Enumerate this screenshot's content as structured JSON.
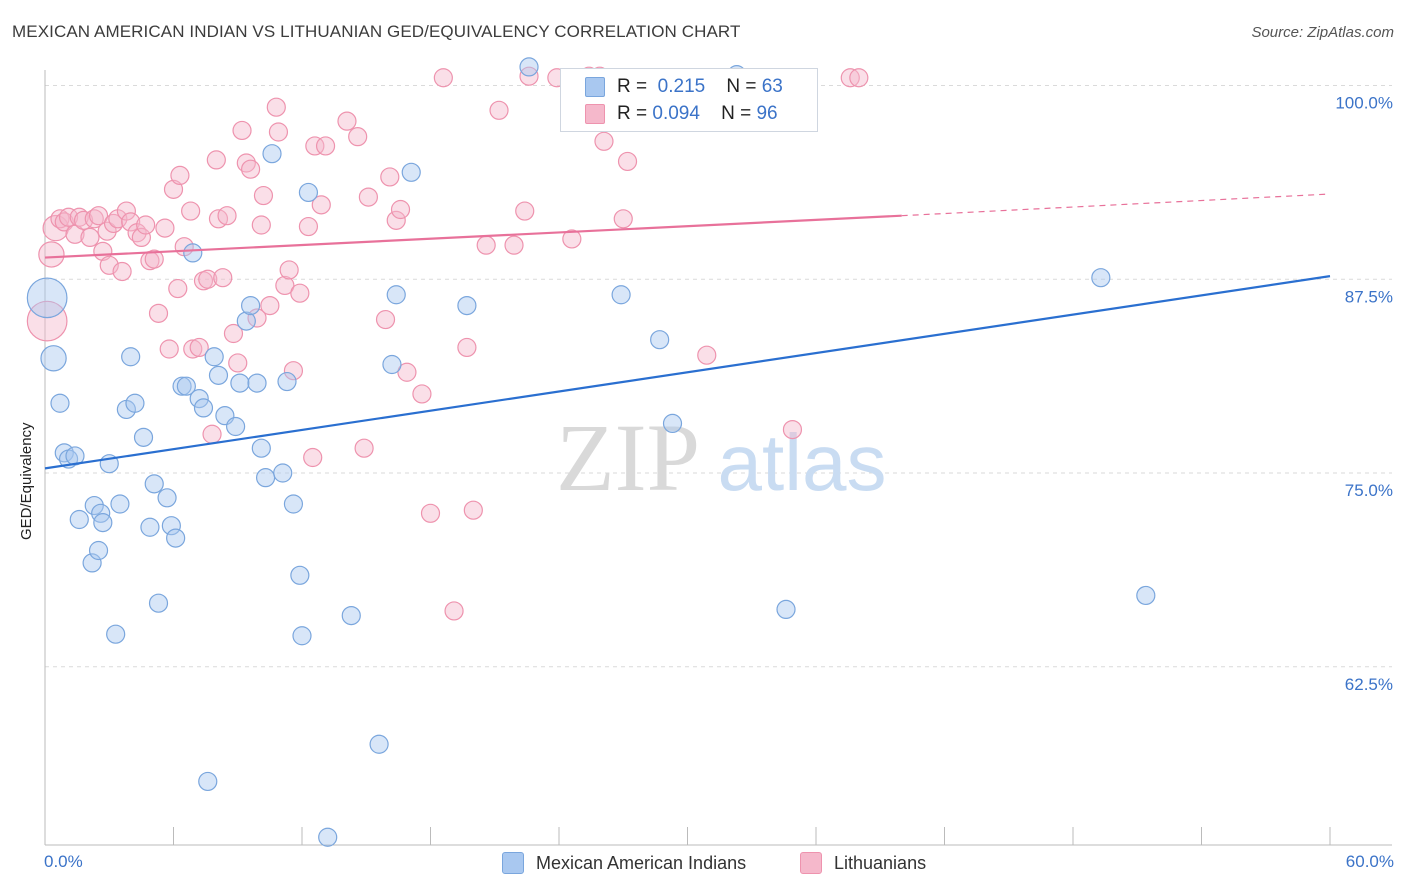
{
  "header": {
    "title": "MEXICAN AMERICAN INDIAN VS LITHUANIAN GED/EQUIVALENCY CORRELATION CHART",
    "source": "Source: ZipAtlas.com"
  },
  "watermark": {
    "zip": "ZIP",
    "atlas": "atlas"
  },
  "legend": {
    "r_label": "R =",
    "n_label": "N =",
    "series": [
      {
        "name": "Mexican American Indians",
        "r": "0.215",
        "n": "63",
        "color": "#a9c8f0"
      },
      {
        "name": "Lithuanians",
        "r": "0.094",
        "n": "96",
        "color": "#f5b8cb"
      }
    ]
  },
  "colors": {
    "blue_fill": "#a9c8f0",
    "blue_stroke": "#7aa6dd",
    "blue_line": "#2a6fd0",
    "pink_fill": "#f5b8cb",
    "pink_stroke": "#ee93ae",
    "pink_line": "#e8719a",
    "tick_text": "#3b73c8",
    "grid": "#dadada"
  },
  "chart_data": {
    "type": "scatter",
    "title": "MEXICAN AMERICAN INDIAN VS LITHUANIAN GED/EQUIVALENCY CORRELATION CHART",
    "xlabel": "",
    "ylabel": "GED/Equivalency",
    "xlim": [
      0,
      60
    ],
    "ylim": [
      51,
      101
    ],
    "x_tick_labels": [
      "0.0%",
      "60.0%"
    ],
    "y_ticks": [
      {
        "value": 100,
        "label": "100.0%"
      },
      {
        "value": 87.5,
        "label": "87.5%"
      },
      {
        "value": 75,
        "label": "75.0%"
      },
      {
        "value": 62.5,
        "label": "62.5%"
      }
    ],
    "series": [
      {
        "name": "Mexican American Indians",
        "color": "blue",
        "trend": {
          "x": [
            0,
            60
          ],
          "y": [
            75.3,
            87.7
          ]
        },
        "points": [
          {
            "x": 0.1,
            "y": 86.3,
            "s": 2.2
          },
          {
            "x": 0.4,
            "y": 82.4,
            "s": 1.4
          },
          {
            "x": 0.7,
            "y": 79.5
          },
          {
            "x": 0.9,
            "y": 76.3
          },
          {
            "x": 1.1,
            "y": 75.9
          },
          {
            "x": 1.4,
            "y": 76.1
          },
          {
            "x": 1.6,
            "y": 72.0
          },
          {
            "x": 2.2,
            "y": 69.2
          },
          {
            "x": 2.3,
            "y": 72.9
          },
          {
            "x": 2.6,
            "y": 72.4
          },
          {
            "x": 2.5,
            "y": 70.0
          },
          {
            "x": 2.7,
            "y": 71.8
          },
          {
            "x": 3.0,
            "y": 75.6
          },
          {
            "x": 3.3,
            "y": 64.6
          },
          {
            "x": 3.5,
            "y": 73.0
          },
          {
            "x": 3.8,
            "y": 79.1
          },
          {
            "x": 4.0,
            "y": 82.5
          },
          {
            "x": 4.2,
            "y": 79.5
          },
          {
            "x": 4.6,
            "y": 77.3
          },
          {
            "x": 4.9,
            "y": 71.5
          },
          {
            "x": 5.1,
            "y": 74.3
          },
          {
            "x": 5.3,
            "y": 66.6
          },
          {
            "x": 5.7,
            "y": 73.4
          },
          {
            "x": 5.9,
            "y": 71.6
          },
          {
            "x": 6.1,
            "y": 70.8
          },
          {
            "x": 6.4,
            "y": 80.6
          },
          {
            "x": 6.6,
            "y": 80.6
          },
          {
            "x": 6.9,
            "y": 89.2
          },
          {
            "x": 7.2,
            "y": 79.8
          },
          {
            "x": 7.4,
            "y": 79.2
          },
          {
            "x": 7.6,
            "y": 55.1
          },
          {
            "x": 7.9,
            "y": 82.5
          },
          {
            "x": 8.1,
            "y": 81.3
          },
          {
            "x": 8.4,
            "y": 78.7
          },
          {
            "x": 8.9,
            "y": 78.0
          },
          {
            "x": 9.1,
            "y": 80.8
          },
          {
            "x": 9.4,
            "y": 84.8
          },
          {
            "x": 9.6,
            "y": 85.8
          },
          {
            "x": 9.9,
            "y": 80.8
          },
          {
            "x": 10.1,
            "y": 76.6
          },
          {
            "x": 10.3,
            "y": 74.7
          },
          {
            "x": 10.6,
            "y": 95.6
          },
          {
            "x": 11.1,
            "y": 75.0
          },
          {
            "x": 11.3,
            "y": 80.9
          },
          {
            "x": 11.6,
            "y": 73.0
          },
          {
            "x": 11.9,
            "y": 68.4
          },
          {
            "x": 12.0,
            "y": 64.5
          },
          {
            "x": 12.3,
            "y": 93.1
          },
          {
            "x": 13.2,
            "y": 51.5
          },
          {
            "x": 14.3,
            "y": 65.8
          },
          {
            "x": 15.6,
            "y": 57.5
          },
          {
            "x": 16.2,
            "y": 82.0
          },
          {
            "x": 16.4,
            "y": 86.5
          },
          {
            "x": 17.1,
            "y": 94.4
          },
          {
            "x": 19.7,
            "y": 85.8
          },
          {
            "x": 22.6,
            "y": 101.2
          },
          {
            "x": 26.1,
            "y": 100.5
          },
          {
            "x": 32.3,
            "y": 100.7
          },
          {
            "x": 26.9,
            "y": 86.5
          },
          {
            "x": 28.7,
            "y": 83.6
          },
          {
            "x": 29.3,
            "y": 78.2
          },
          {
            "x": 34.6,
            "y": 66.2
          },
          {
            "x": 49.3,
            "y": 87.6
          },
          {
            "x": 51.4,
            "y": 67.1
          }
        ]
      },
      {
        "name": "Lithuanians",
        "color": "pink",
        "trend": {
          "x": [
            0,
            40
          ],
          "y": [
            88.9,
            91.6
          ]
        },
        "trend_dashed": {
          "x": [
            40,
            60
          ],
          "y": [
            91.6,
            93.0
          ]
        },
        "points": [
          {
            "x": 0.1,
            "y": 84.8,
            "s": 2.2
          },
          {
            "x": 0.3,
            "y": 89.1,
            "s": 1.4
          },
          {
            "x": 0.5,
            "y": 90.8,
            "s": 1.4
          },
          {
            "x": 0.7,
            "y": 91.4
          },
          {
            "x": 0.9,
            "y": 91.2
          },
          {
            "x": 1.1,
            "y": 91.5
          },
          {
            "x": 1.4,
            "y": 90.4
          },
          {
            "x": 1.6,
            "y": 91.5
          },
          {
            "x": 1.8,
            "y": 91.3
          },
          {
            "x": 2.1,
            "y": 90.2
          },
          {
            "x": 2.3,
            "y": 91.4
          },
          {
            "x": 2.5,
            "y": 91.6
          },
          {
            "x": 2.7,
            "y": 89.3
          },
          {
            "x": 2.9,
            "y": 90.6
          },
          {
            "x": 3.0,
            "y": 88.4
          },
          {
            "x": 3.2,
            "y": 91.1
          },
          {
            "x": 3.4,
            "y": 91.4
          },
          {
            "x": 3.6,
            "y": 88.0
          },
          {
            "x": 3.8,
            "y": 91.9
          },
          {
            "x": 4.0,
            "y": 91.2
          },
          {
            "x": 4.3,
            "y": 90.5
          },
          {
            "x": 4.5,
            "y": 90.2
          },
          {
            "x": 4.7,
            "y": 91.0
          },
          {
            "x": 4.9,
            "y": 88.7
          },
          {
            "x": 5.1,
            "y": 88.8
          },
          {
            "x": 5.3,
            "y": 85.3
          },
          {
            "x": 5.6,
            "y": 90.8
          },
          {
            "x": 5.8,
            "y": 83.0
          },
          {
            "x": 6.0,
            "y": 93.3
          },
          {
            "x": 6.2,
            "y": 86.9
          },
          {
            "x": 6.3,
            "y": 94.2
          },
          {
            "x": 6.5,
            "y": 89.6
          },
          {
            "x": 6.8,
            "y": 91.9
          },
          {
            "x": 6.9,
            "y": 83.0
          },
          {
            "x": 7.2,
            "y": 83.1
          },
          {
            "x": 7.4,
            "y": 87.4
          },
          {
            "x": 7.6,
            "y": 87.5
          },
          {
            "x": 7.8,
            "y": 77.5
          },
          {
            "x": 8.0,
            "y": 95.2
          },
          {
            "x": 8.1,
            "y": 91.4
          },
          {
            "x": 8.3,
            "y": 87.6
          },
          {
            "x": 8.5,
            "y": 91.6
          },
          {
            "x": 8.8,
            "y": 84.0
          },
          {
            "x": 9.0,
            "y": 82.1
          },
          {
            "x": 9.2,
            "y": 97.1
          },
          {
            "x": 9.4,
            "y": 95.0
          },
          {
            "x": 9.6,
            "y": 94.6
          },
          {
            "x": 9.9,
            "y": 85.0
          },
          {
            "x": 10.1,
            "y": 91.0
          },
          {
            "x": 10.2,
            "y": 92.9
          },
          {
            "x": 10.5,
            "y": 85.8
          },
          {
            "x": 10.8,
            "y": 98.6
          },
          {
            "x": 10.9,
            "y": 97.0
          },
          {
            "x": 11.2,
            "y": 87.1
          },
          {
            "x": 11.4,
            "y": 88.1
          },
          {
            "x": 11.6,
            "y": 81.6
          },
          {
            "x": 11.9,
            "y": 86.6
          },
          {
            "x": 12.3,
            "y": 90.9
          },
          {
            "x": 12.5,
            "y": 76.0
          },
          {
            "x": 12.6,
            "y": 96.1
          },
          {
            "x": 12.9,
            "y": 92.3
          },
          {
            "x": 13.1,
            "y": 96.1
          },
          {
            "x": 14.1,
            "y": 97.7
          },
          {
            "x": 14.6,
            "y": 96.7
          },
          {
            "x": 14.9,
            "y": 76.6
          },
          {
            "x": 15.1,
            "y": 92.8
          },
          {
            "x": 15.9,
            "y": 84.9
          },
          {
            "x": 16.1,
            "y": 94.1
          },
          {
            "x": 16.4,
            "y": 91.3
          },
          {
            "x": 16.6,
            "y": 92.0
          },
          {
            "x": 16.9,
            "y": 81.5
          },
          {
            "x": 17.6,
            "y": 80.1
          },
          {
            "x": 18.0,
            "y": 72.4
          },
          {
            "x": 18.6,
            "y": 100.5
          },
          {
            "x": 19.1,
            "y": 66.1
          },
          {
            "x": 19.7,
            "y": 83.1
          },
          {
            "x": 20.0,
            "y": 72.6
          },
          {
            "x": 20.6,
            "y": 89.7
          },
          {
            "x": 21.2,
            "y": 98.4
          },
          {
            "x": 21.9,
            "y": 89.7
          },
          {
            "x": 22.4,
            "y": 91.9
          },
          {
            "x": 22.6,
            "y": 100.6
          },
          {
            "x": 23.9,
            "y": 100.5
          },
          {
            "x": 24.6,
            "y": 90.1
          },
          {
            "x": 25.4,
            "y": 100.6
          },
          {
            "x": 25.9,
            "y": 100.6
          },
          {
            "x": 26.1,
            "y": 96.4
          },
          {
            "x": 26.9,
            "y": 100.5
          },
          {
            "x": 27.0,
            "y": 91.4
          },
          {
            "x": 27.2,
            "y": 95.1
          },
          {
            "x": 30.9,
            "y": 100.5
          },
          {
            "x": 30.9,
            "y": 82.6
          },
          {
            "x": 32.9,
            "y": 100.5
          },
          {
            "x": 34.9,
            "y": 77.8
          },
          {
            "x": 37.6,
            "y": 100.5
          },
          {
            "x": 38.0,
            "y": 100.5
          }
        ]
      }
    ]
  }
}
